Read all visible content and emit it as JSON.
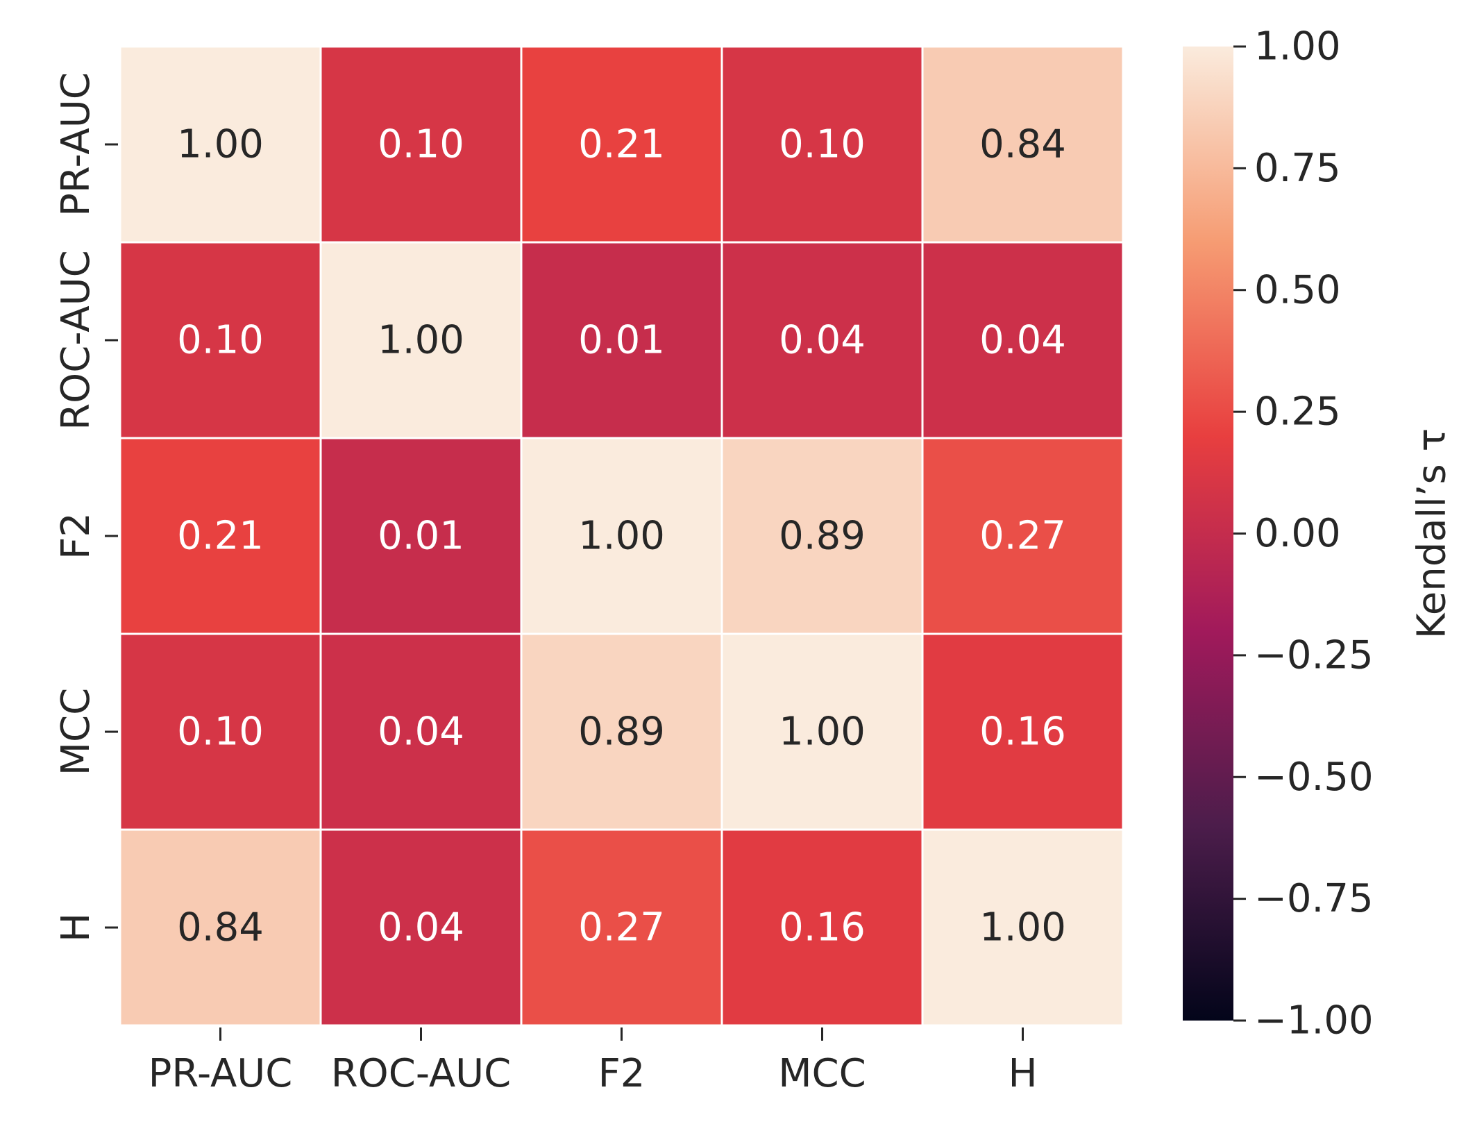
{
  "chart_data": {
    "type": "heatmap",
    "title": "",
    "xlabel": "",
    "ylabel": "",
    "row_labels": [
      "PR-AUC",
      "ROC-AUC",
      "F2",
      "MCC",
      "H"
    ],
    "col_labels": [
      "PR-AUC",
      "ROC-AUC",
      "F2",
      "MCC",
      "H"
    ],
    "values": [
      [
        1.0,
        0.1,
        0.21,
        0.1,
        0.84
      ],
      [
        0.1,
        1.0,
        0.01,
        0.04,
        0.04
      ],
      [
        0.21,
        0.01,
        1.0,
        0.89,
        0.27
      ],
      [
        0.1,
        0.04,
        0.89,
        1.0,
        0.16
      ],
      [
        0.84,
        0.04,
        0.27,
        0.16,
        1.0
      ]
    ],
    "value_format": "2 decimals",
    "colorbar": {
      "label": "Kendall’s τ",
      "vmin": -1.0,
      "vmax": 1.0,
      "ticks": [
        1.0,
        0.75,
        0.5,
        0.25,
        0.0,
        -0.25,
        -0.5,
        -0.75,
        -1.0
      ],
      "tick_labels": [
        "1.00",
        "0.75",
        "0.50",
        "0.25",
        "0.00",
        "−0.25",
        "−0.50",
        "−0.75",
        "−1.00"
      ],
      "colormap": "rocket",
      "colormap_stops": [
        "#03051a",
        "#4c1d4b",
        "#a11a5b",
        "#e83f3f",
        "#f69c73",
        "#faebdd"
      ]
    },
    "annotation_colors": {
      "dark_text": "#262626",
      "light_text": "#ffffff"
    }
  }
}
